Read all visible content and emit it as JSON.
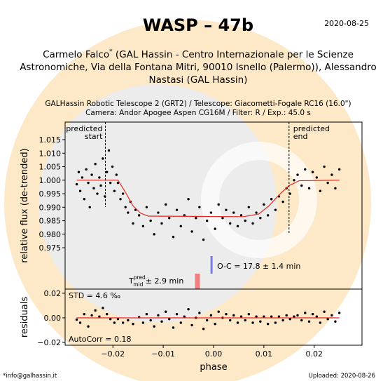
{
  "header": {
    "title": "WASP – 47b",
    "date": "2020-08-25",
    "author_line1": [
      "Carmelo Falco",
      "*",
      " (GAL Hassin - Centro Internazionale per le Scienze"
    ],
    "author_line2": "Astronomiche, Via della Fontana Mitri, 90010 Isnello (Palermo)), Alessandro",
    "author_line3": "Nastasi (GAL Hassin)",
    "instrument_lines": [
      "GALHassin Robotic Telescope 2 (GRT2) / Telescope: Giacometti-Fogale RC16 (16.0\")",
      "Camera: Andor Apogee Aspen CG16M / Filter: R / Exp.: 45.0 s"
    ]
  },
  "footer": {
    "email": "*info@galhassin.it",
    "uploaded": "Uploaded: 2020-08-26"
  },
  "chart_data": [
    {
      "type": "scatter",
      "ylabel": "relative flux (de-trended)",
      "xlim": [
        -0.0295,
        0.0295
      ],
      "ylim": [
        0.9597,
        1.0215
      ],
      "yticks": [
        0.975,
        {
          "value": 0.98,
          "label": "0.980"
        },
        0.985,
        {
          "value": 0.99,
          "label": "0.990"
        },
        0.995,
        {
          "value": 1.0,
          "label": "1.000"
        },
        1.005,
        {
          "value": 1.01,
          "label": "1.010"
        },
        1.015
      ],
      "series": [
        {
          "color": "#000000",
          "x": [
            -0.0272,
            -0.0268,
            -0.0265,
            -0.0261,
            -0.0257,
            -0.0253,
            -0.0249,
            -0.0246,
            -0.0242,
            -0.0238,
            -0.0235,
            -0.0231,
            -0.0227,
            -0.0224,
            -0.022,
            -0.0216,
            -0.0212,
            -0.0208,
            -0.0205,
            -0.0201,
            -0.0197,
            -0.0193,
            -0.019,
            -0.0185,
            -0.018,
            -0.0175,
            -0.017,
            -0.0165,
            -0.016,
            -0.0155,
            -0.0148,
            -0.014,
            -0.0133,
            -0.0125,
            -0.0118,
            -0.011,
            -0.0103,
            -0.0095,
            -0.0088,
            -0.008,
            -0.0073,
            -0.0065,
            -0.0058,
            -0.005,
            -0.0043,
            -0.0035,
            -0.0028,
            -0.002,
            -0.0013,
            -0.0005,
            0.0003,
            0.001,
            0.0018,
            0.0025,
            0.0033,
            0.004,
            0.0048,
            0.0055,
            0.0063,
            0.007,
            0.0078,
            0.0085,
            0.0093,
            0.01,
            0.0108,
            0.0115,
            0.0123,
            0.013,
            0.0138,
            0.0145,
            0.0152,
            0.016,
            0.0167,
            0.0175,
            0.0182,
            0.019,
            0.0197,
            0.0205,
            0.0212,
            0.022,
            0.0227,
            0.0235,
            0.0242,
            0.025
          ],
          "values": [
            0.9985,
            1.003,
            0.996,
            1.001,
            0.993,
            1.004,
            0.999,
            0.99,
            1.002,
            0.997,
            1.006,
            0.995,
            1.001,
            0.998,
            1.008,
            0.994,
            1.003,
            1.011,
            0.999,
            1.005,
            0.996,
            1.002,
            0.999,
            0.993,
            0.995,
            0.99,
            0.988,
            0.992,
            0.984,
            0.989,
            0.987,
            0.983,
            0.99,
            0.985,
            0.98,
            0.988,
            0.984,
            0.991,
            0.986,
            0.979,
            0.989,
            0.983,
            0.987,
            0.993,
            0.981,
            0.986,
            0.99,
            0.978,
            0.985,
            0.988,
            0.982,
            0.991,
            0.986,
            0.989,
            0.984,
            0.988,
            0.983,
            0.987,
            0.985,
            0.99,
            0.984,
            0.988,
            0.986,
            0.991,
            0.987,
            0.993,
            0.989,
            0.994,
            0.992,
            0.997,
            0.995,
            1.0,
            1.002,
            0.998,
            1.004,
            0.997,
            1.003,
            1.001,
            0.996,
            1.005,
            0.999,
            1.002,
            0.997,
            1.004
          ]
        },
        {
          "color": "#e8251d",
          "style": "line",
          "x": [
            -0.0272,
            -0.019,
            -0.0175,
            -0.016,
            -0.0145,
            -0.013,
            0.006,
            0.009,
            0.011,
            0.013,
            0.015,
            0.017,
            0.025
          ],
          "values": [
            1.0,
            1.0,
            0.9955,
            0.9905,
            0.9878,
            0.9867,
            0.9865,
            0.9875,
            0.9905,
            0.9945,
            0.998,
            0.9998,
            1.0
          ]
        }
      ],
      "predicted_start": {
        "x": -0.0215,
        "label": [
          "predicted",
          "start"
        ]
      },
      "predicted_end": {
        "x": 0.015,
        "label": [
          "predicted",
          "end"
        ]
      },
      "oc_marker": {
        "x": -0.0004,
        "color": "#7b7be6",
        "label": "O-C = 17.8 ± 1.4 min"
      },
      "tmid_marker": {
        "x": -0.0032,
        "color": "#f08080",
        "label": [
          "T",
          "pred.",
          "mid",
          " ± 2.9 min"
        ]
      }
    },
    {
      "type": "scatter",
      "ylabel": "residuals",
      "xlabel": "phase",
      "xlim": [
        -0.0295,
        0.0295
      ],
      "ylim": [
        -0.0223,
        0.0234
      ],
      "xticks": [
        {
          "value": -0.02,
          "label": "−0.02"
        },
        {
          "value": -0.01,
          "label": "−0.01"
        },
        {
          "value": 0,
          "label": "0.00"
        },
        0.01,
        0.02
      ],
      "yticks": [
        {
          "value": -0.02,
          "label": "−0.02"
        },
        {
          "value": 0,
          "label": "0.00"
        },
        0.02
      ],
      "std_label": "STD = 4.6 ‰",
      "autocorr_label": "AutoCorr = 0.18",
      "series": [
        {
          "color": "#000000",
          "x": [
            -0.0272,
            -0.0265,
            -0.0257,
            -0.0249,
            -0.0242,
            -0.0235,
            -0.0227,
            -0.022,
            -0.0212,
            -0.0205,
            -0.0197,
            -0.019,
            -0.018,
            -0.017,
            -0.016,
            -0.0148,
            -0.014,
            -0.0133,
            -0.0125,
            -0.0118,
            -0.011,
            -0.0103,
            -0.0095,
            -0.0088,
            -0.008,
            -0.0073,
            -0.0065,
            -0.0058,
            -0.005,
            -0.0043,
            -0.0035,
            -0.0028,
            -0.002,
            -0.0013,
            -0.0005,
            0.0003,
            0.001,
            0.0018,
            0.0025,
            0.0033,
            0.004,
            0.0048,
            0.0055,
            0.0063,
            0.007,
            0.0078,
            0.0085,
            0.0093,
            0.01,
            0.0108,
            0.0115,
            0.0123,
            0.013,
            0.0138,
            0.0145,
            0.0152,
            0.016,
            0.0167,
            0.0175,
            0.0182,
            0.019,
            0.0197,
            0.0205,
            0.0212,
            0.022,
            0.0227,
            0.0235,
            0.0242,
            0.025
          ],
          "values": [
            -0.0015,
            -0.004,
            0.003,
            -0.007,
            0.002,
            0.006,
            0.001,
            0.008,
            0.003,
            -0.001,
            -0.004,
            -0.001,
            -0.004,
            -0.002,
            -0.005,
            0.0005,
            -0.004,
            0.003,
            -0.002,
            -0.007,
            0.002,
            -0.003,
            0.005,
            -0.001,
            -0.008,
            0.003,
            -0.004,
            0.001,
            0.007,
            -0.006,
            0.0,
            0.004,
            -0.009,
            -0.002,
            0.002,
            -0.005,
            0.005,
            0.0,
            0.003,
            -0.002,
            0.002,
            -0.004,
            0.001,
            -0.002,
            0.003,
            -0.004,
            0.001,
            -0.003,
            0.001,
            -0.005,
            0.001,
            -0.004,
            0.001,
            -0.002,
            0.002,
            -0.001,
            0.001,
            0.002,
            -0.002,
            0.004,
            -0.003,
            0.003,
            0.001,
            -0.004,
            0.005,
            -0.001,
            0.002,
            -0.003,
            0.004
          ]
        },
        {
          "color": "#e8251d",
          "style": "line",
          "x": [
            -0.0272,
            0.025
          ],
          "values": [
            0,
            0
          ]
        }
      ]
    }
  ]
}
